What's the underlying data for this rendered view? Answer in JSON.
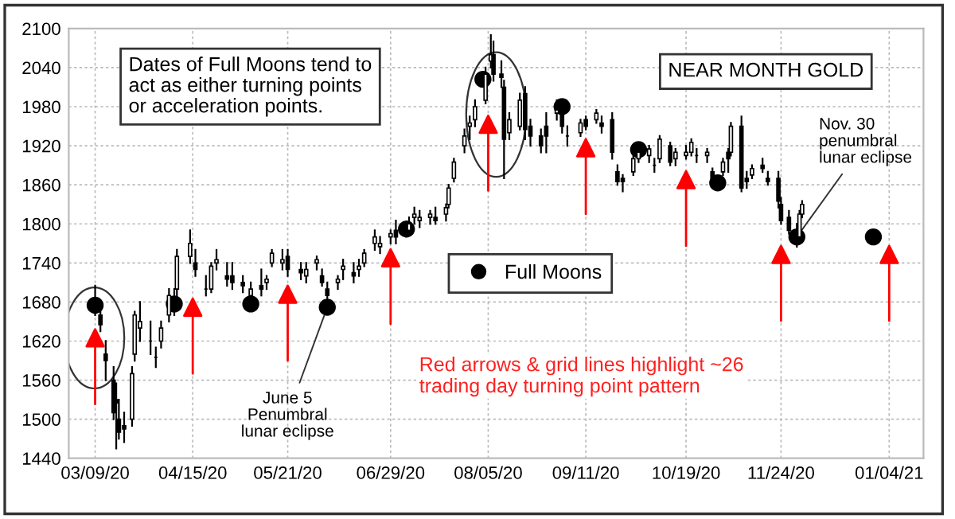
{
  "chart_data": {
    "type": "candlestick",
    "title": "NEAR MONTH GOLD",
    "color": "#000000",
    "x": [
      "2020-03-09",
      "2020-03-11",
      "2020-03-13",
      "2020-03-16",
      "2020-03-17",
      "2020-03-18",
      "2020-03-20",
      "2020-03-23",
      "2020-03-24",
      "2020-03-26",
      "2020-03-30",
      "2020-04-01",
      "2020-04-03",
      "2020-04-06",
      "2020-04-08",
      "2020-04-09",
      "2020-04-14",
      "2020-04-16",
      "2020-04-20",
      "2020-04-22",
      "2020-04-24",
      "2020-04-28",
      "2020-04-30",
      "2020-05-04",
      "2020-05-07",
      "2020-05-11",
      "2020-05-13",
      "2020-05-15",
      "2020-05-19",
      "2020-05-21",
      "2020-05-26",
      "2020-05-28",
      "2020-06-01",
      "2020-06-03",
      "2020-06-05",
      "2020-06-09",
      "2020-06-11",
      "2020-06-15",
      "2020-06-17",
      "2020-06-19",
      "2020-06-23",
      "2020-06-25",
      "2020-06-29",
      "2020-07-01",
      "2020-07-06",
      "2020-07-08",
      "2020-07-10",
      "2020-07-14",
      "2020-07-16",
      "2020-07-20",
      "2020-07-21",
      "2020-07-23",
      "2020-07-27",
      "2020-07-29",
      "2020-07-31",
      "2020-08-04",
      "2020-08-06",
      "2020-08-07",
      "2020-08-10",
      "2020-08-11",
      "2020-08-13",
      "2020-08-17",
      "2020-08-19",
      "2020-08-21",
      "2020-08-25",
      "2020-08-27",
      "2020-08-31",
      "2020-09-02",
      "2020-09-04",
      "2020-09-09",
      "2020-09-11",
      "2020-09-15",
      "2020-09-17",
      "2020-09-21",
      "2020-09-23",
      "2020-09-25",
      "2020-09-29",
      "2020-10-01",
      "2020-10-05",
      "2020-10-07",
      "2020-10-09",
      "2020-10-13",
      "2020-10-15",
      "2020-10-19",
      "2020-10-21",
      "2020-10-23",
      "2020-10-27",
      "2020-10-29",
      "2020-11-02",
      "2020-11-04",
      "2020-11-05",
      "2020-11-09",
      "2020-11-11",
      "2020-11-13",
      "2020-11-17",
      "2020-11-19",
      "2020-11-23",
      "2020-11-24",
      "2020-11-27",
      "2020-11-30",
      "2020-12-01",
      "2020-12-02"
    ],
    "ohlc": [
      [
        1680,
        1705,
        1660,
        1675
      ],
      [
        1660,
        1670,
        1635,
        1645
      ],
      [
        1600,
        1620,
        1560,
        1590
      ],
      [
        1560,
        1580,
        1500,
        1510
      ],
      [
        1530,
        1555,
        1455,
        1525
      ],
      [
        1500,
        1530,
        1470,
        1480
      ],
      [
        1490,
        1510,
        1465,
        1485
      ],
      [
        1500,
        1580,
        1490,
        1570
      ],
      [
        1600,
        1665,
        1590,
        1660
      ],
      [
        1640,
        1680,
        1620,
        1650
      ],
      [
        1620,
        1650,
        1600,
        1620
      ],
      [
        1595,
        1610,
        1580,
        1595
      ],
      [
        1620,
        1650,
        1610,
        1640
      ],
      [
        1660,
        1700,
        1650,
        1690
      ],
      [
        1680,
        1700,
        1660,
        1680
      ],
      [
        1700,
        1760,
        1690,
        1750
      ],
      [
        1750,
        1790,
        1740,
        1770
      ],
      [
        1740,
        1760,
        1720,
        1730
      ],
      [
        1700,
        1720,
        1690,
        1700
      ],
      [
        1700,
        1740,
        1695,
        1735
      ],
      [
        1740,
        1760,
        1730,
        1745
      ],
      [
        1720,
        1740,
        1705,
        1715
      ],
      [
        1720,
        1740,
        1700,
        1710
      ],
      [
        1710,
        1720,
        1695,
        1705
      ],
      [
        1690,
        1710,
        1675,
        1700
      ],
      [
        1705,
        1730,
        1690,
        1700
      ],
      [
        1710,
        1720,
        1700,
        1715
      ],
      [
        1740,
        1760,
        1735,
        1755
      ],
      [
        1740,
        1760,
        1730,
        1745
      ],
      [
        1750,
        1760,
        1720,
        1730
      ],
      [
        1730,
        1740,
        1715,
        1725
      ],
      [
        1720,
        1740,
        1710,
        1730
      ],
      [
        1740,
        1750,
        1730,
        1745
      ],
      [
        1720,
        1730,
        1705,
        1710
      ],
      [
        1700,
        1710,
        1680,
        1690
      ],
      [
        1710,
        1720,
        1700,
        1715
      ],
      [
        1730,
        1745,
        1715,
        1735
      ],
      [
        1725,
        1740,
        1710,
        1720
      ],
      [
        1730,
        1745,
        1720,
        1735
      ],
      [
        1740,
        1760,
        1735,
        1755
      ],
      [
        1770,
        1790,
        1760,
        1780
      ],
      [
        1765,
        1780,
        1755,
        1770
      ],
      [
        1780,
        1790,
        1770,
        1785
      ],
      [
        1790,
        1805,
        1770,
        1780
      ],
      [
        1790,
        1810,
        1785,
        1800
      ],
      [
        1810,
        1825,
        1800,
        1815
      ],
      [
        1805,
        1820,
        1795,
        1810
      ],
      [
        1810,
        1820,
        1800,
        1815
      ],
      [
        1810,
        1825,
        1800,
        1805
      ],
      [
        1815,
        1830,
        1805,
        1825
      ],
      [
        1830,
        1860,
        1825,
        1855
      ],
      [
        1870,
        1900,
        1865,
        1895
      ],
      [
        1920,
        1945,
        1910,
        1935
      ],
      [
        1950,
        1965,
        1930,
        1955
      ],
      [
        1960,
        1990,
        1950,
        1980
      ],
      [
        1990,
        2040,
        1985,
        2030
      ],
      [
        2050,
        2090,
        2040,
        2060
      ],
      [
        2060,
        2080,
        2020,
        2030
      ],
      [
        2030,
        2050,
        2010,
        2025
      ],
      [
        2010,
        2020,
        1870,
        1930
      ],
      [
        1940,
        1970,
        1930,
        1960
      ],
      [
        1950,
        2000,
        1945,
        1990
      ],
      [
        2000,
        2010,
        1930,
        1945
      ],
      [
        1950,
        1960,
        1920,
        1935
      ],
      [
        1935,
        1945,
        1910,
        1920
      ],
      [
        1950,
        1970,
        1910,
        1935
      ],
      [
        1970,
        1990,
        1960,
        1975
      ],
      [
        1975,
        1985,
        1940,
        1950
      ],
      [
        1935,
        1950,
        1920,
        1935
      ],
      [
        1940,
        1960,
        1935,
        1955
      ],
      [
        1960,
        1965,
        1945,
        1950
      ],
      [
        1960,
        1975,
        1955,
        1970
      ],
      [
        1955,
        1965,
        1940,
        1950
      ],
      [
        1960,
        1970,
        1900,
        1910
      ],
      [
        1880,
        1890,
        1860,
        1865
      ],
      [
        1870,
        1875,
        1850,
        1865
      ],
      [
        1880,
        1905,
        1875,
        1900
      ],
      [
        1900,
        1920,
        1895,
        1910
      ],
      [
        1905,
        1920,
        1895,
        1915
      ],
      [
        1890,
        1900,
        1880,
        1890
      ],
      [
        1900,
        1935,
        1895,
        1930
      ],
      [
        1920,
        1925,
        1890,
        1895
      ],
      [
        1900,
        1915,
        1890,
        1910
      ],
      [
        1905,
        1920,
        1900,
        1910
      ],
      [
        1910,
        1930,
        1905,
        1925
      ],
      [
        1905,
        1915,
        1895,
        1905
      ],
      [
        1905,
        1915,
        1895,
        1910
      ],
      [
        1880,
        1885,
        1860,
        1870
      ],
      [
        1880,
        1900,
        1875,
        1895
      ],
      [
        1910,
        1915,
        1880,
        1900
      ],
      [
        1910,
        1955,
        1905,
        1950
      ],
      [
        1950,
        1965,
        1850,
        1855
      ],
      [
        1870,
        1880,
        1855,
        1865
      ],
      [
        1875,
        1890,
        1870,
        1885
      ],
      [
        1890,
        1900,
        1880,
        1885
      ],
      [
        1870,
        1880,
        1860,
        1865
      ],
      [
        1870,
        1880,
        1825,
        1835
      ],
      [
        1830,
        1840,
        1800,
        1805
      ],
      [
        1810,
        1820,
        1785,
        1790
      ],
      [
        1790,
        1800,
        1765,
        1780
      ],
      [
        1780,
        1820,
        1775,
        1815
      ],
      [
        1815,
        1835,
        1810,
        1830
      ]
    ],
    "series": [
      {
        "name": "Full Moons",
        "type": "scatter",
        "marker": "circle",
        "color": "#000000",
        "x": [
          "2020-03-09",
          "2020-04-08",
          "2020-05-07",
          "2020-06-05",
          "2020-07-05",
          "2020-08-03",
          "2020-09-02",
          "2020-10-01",
          "2020-10-31",
          "2020-11-30",
          "2020-12-29"
        ],
        "values": [
          1675,
          1677,
          1677,
          1672,
          1792,
          2022,
          1980,
          1914,
          1863,
          1780,
          1780
        ]
      },
      {
        "type": "scatter",
        "marker": "triangle",
        "color": "#ff0000",
        "x": [
          "2020-03-09",
          "2020-04-15",
          "2020-05-21",
          "2020-06-29",
          "2020-08-05",
          "2020-09-11",
          "2020-10-19",
          "2020-11-24",
          "2021-01-04"
        ],
        "values": [
          1625,
          1672,
          1692,
          1748,
          1953,
          1917,
          1868,
          1753,
          1753
        ]
      }
    ],
    "annotations": [
      "Dates of Full Moons tend to\nact as either turning points\nor acceleration points.",
      {
        "text": "June 5\nPenumbral\nlunar eclipse",
        "x": "2020-06-05",
        "y": 1672
      },
      {
        "text": "Nov. 30\npenumbral\nlunar eclipse",
        "x": "2020-11-30",
        "y": 1780
      },
      "Red arrows & grid lines highlight ~26\ntrading day turning point pattern"
    ],
    "xlim": [
      "2020-02-28",
      "2021-01-17"
    ],
    "xticks": [
      {
        "value": "2020-03-09",
        "label": "03/09/20"
      },
      {
        "value": "2020-04-15",
        "label": "04/15/20"
      },
      {
        "value": "2020-05-21",
        "label": "05/21/20"
      },
      {
        "value": "2020-06-29",
        "label": "06/29/20"
      },
      {
        "value": "2020-08-05",
        "label": "08/05/20"
      },
      {
        "value": "2020-09-11",
        "label": "09/11/20"
      },
      {
        "value": "2020-10-19",
        "label": "10/19/20"
      },
      {
        "value": "2020-11-24",
        "label": "11/24/20"
      },
      {
        "value": "2021-01-04",
        "label": "01/04/21"
      }
    ],
    "ylim": [
      1440,
      2100
    ],
    "yticks": [
      1440,
      1500,
      1560,
      1620,
      1680,
      1740,
      1800,
      1860,
      1920,
      1980,
      2040,
      2100
    ],
    "grid": true,
    "legend": "center"
  }
}
